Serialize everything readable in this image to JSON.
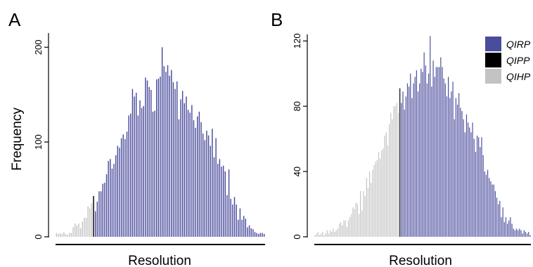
{
  "chart_data": [
    {
      "panel": "A",
      "type": "bar",
      "xlabel": "Resolution",
      "ylabel": "Frequency",
      "ylim": [
        0,
        215
      ],
      "yticks": [
        "0",
        "100",
        "200"
      ],
      "yticks_values": [
        0,
        100,
        200
      ],
      "series": [
        {
          "name": "QIHP",
          "color": "#c3c3c3",
          "values": [
            4,
            3,
            4,
            3,
            5,
            3,
            2,
            4,
            4,
            10,
            14,
            12,
            14,
            9,
            16,
            20,
            20,
            32,
            30,
            35
          ]
        },
        {
          "name": "QIPP",
          "color": "#000000",
          "values": [
            43
          ]
        },
        {
          "name": "QIRP",
          "color": "#4a4c9c",
          "values": [
            27,
            37,
            48,
            48,
            56,
            57,
            66,
            80,
            82,
            72,
            77,
            86,
            96,
            94,
            104,
            108,
            103,
            111,
            128,
            130,
            156,
            148,
            152,
            128,
            144,
            136,
            138,
            168,
            165,
            158,
            155,
            132,
            133,
            166,
            167,
            169,
            200,
            180,
            174,
            181,
            170,
            176,
            163,
            156,
            164,
            124,
            145,
            154,
            141,
            148,
            134,
            131,
            139,
            123,
            115,
            127,
            132,
            121,
            109,
            102,
            112,
            107,
            96,
            114,
            84,
            104,
            77,
            82,
            74,
            75,
            69,
            44,
            71,
            40,
            34,
            42,
            34,
            18,
            30,
            18,
            22,
            19,
            10,
            12,
            9,
            8,
            5,
            4,
            3,
            4,
            4,
            3
          ]
        }
      ]
    },
    {
      "panel": "B",
      "type": "bar",
      "xlabel": "Resolution",
      "ylabel": "",
      "ylim": [
        0,
        124
      ],
      "yticks": [
        "0",
        "40",
        "80",
        "120"
      ],
      "yticks_values": [
        0,
        40,
        80,
        120
      ],
      "series": [
        {
          "name": "QIHP",
          "color": "#c3c3c3",
          "values": [
            1,
            2,
            3,
            1,
            2,
            3,
            1,
            2,
            4,
            2,
            4,
            3,
            5,
            3,
            4,
            5,
            8,
            9,
            7,
            10,
            10,
            6,
            10,
            12,
            14,
            18,
            17,
            21,
            20,
            14,
            28,
            16,
            28,
            25,
            36,
            30,
            40,
            33,
            41,
            44,
            46,
            47,
            52,
            48,
            53,
            54,
            62,
            64,
            56,
            69,
            76,
            72,
            80,
            80,
            82,
            76
          ]
        },
        {
          "name": "QIPP",
          "color": "#000000",
          "values": [
            91
          ]
        },
        {
          "name": "QIRP",
          "color": "#4a4c9c",
          "values": [
            82,
            89,
            78,
            86,
            94,
            92,
            100,
            85,
            94,
            98,
            102,
            89,
            94,
            103,
            101,
            113,
            105,
            94,
            100,
            123,
            92,
            108,
            98,
            104,
            104,
            104,
            110,
            104,
            97,
            94,
            86,
            98,
            85,
            89,
            95,
            72,
            85,
            81,
            88,
            79,
            77,
            72,
            64,
            75,
            70,
            67,
            64,
            70,
            60,
            52,
            62,
            61,
            55,
            61,
            50,
            40,
            38,
            41,
            36,
            34,
            32,
            32,
            28,
            24,
            20,
            22,
            12,
            18,
            9,
            12,
            8,
            10,
            12,
            8,
            5,
            4,
            5,
            4,
            5,
            4,
            2,
            4,
            3,
            2,
            3,
            1
          ]
        }
      ]
    }
  ]
}
